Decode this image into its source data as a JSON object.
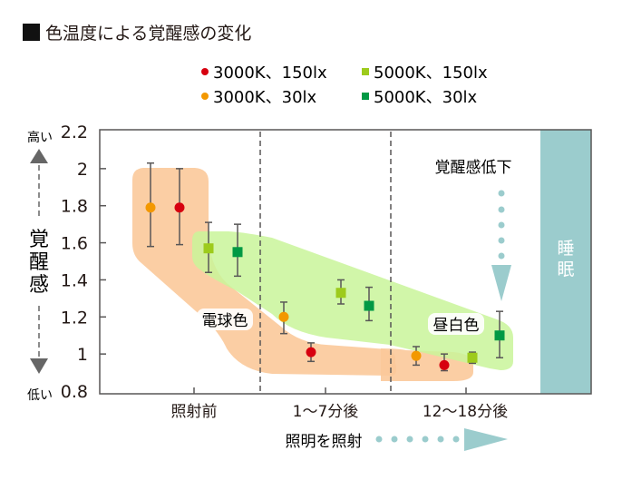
{
  "chart_data": {
    "type": "scatter",
    "title": "色温度による覚醒感の変化",
    "xlabel": "照明を照射",
    "ylabel": "覚醒感",
    "ylabel_high": "高い",
    "ylabel_low": "低い",
    "ylim": [
      0.8,
      2.2
    ],
    "yticks": [
      "2.2",
      "2",
      "1.8",
      "1.6",
      "1.4",
      "1.2",
      "1",
      "0.8"
    ],
    "ytick_values": [
      2.2,
      2.0,
      1.8,
      1.6,
      1.4,
      1.2,
      1.0,
      0.8
    ],
    "categories": [
      "照射前",
      "1〜7分後",
      "12〜18分後"
    ],
    "legend_placement": "top",
    "series": [
      {
        "name": "3000K、150lx",
        "color": "#d7000f",
        "marker": "circle",
        "values": [
          1.79,
          1.01,
          0.94
        ],
        "err_low": [
          1.59,
          0.96,
          0.91
        ],
        "err_high": [
          2.0,
          1.06,
          1.0
        ]
      },
      {
        "name": "5000K、150lx",
        "color": "#9dcb1c",
        "marker": "square",
        "values": [
          1.57,
          1.33,
          0.98
        ],
        "err_low": [
          1.44,
          1.27,
          0.95
        ],
        "err_high": [
          1.71,
          1.4,
          1.01
        ]
      },
      {
        "name": "3000K、30lx",
        "color": "#f39800",
        "marker": "circle",
        "values": [
          1.79,
          1.2,
          0.99
        ],
        "err_low": [
          1.58,
          1.11,
          0.94
        ],
        "err_high": [
          2.03,
          1.28,
          1.04
        ]
      },
      {
        "name": "5000K、30lx",
        "color": "#009944",
        "marker": "square",
        "values": [
          1.55,
          1.26,
          1.1
        ],
        "err_low": [
          1.42,
          1.18,
          0.98
        ],
        "err_high": [
          1.7,
          1.36,
          1.23
        ]
      }
    ],
    "annotations": {
      "bulb_color": "電球色",
      "daylight_color": "昼白色",
      "arousal_down": "覚醒感低下",
      "sleep": "睡眠"
    },
    "colors": {
      "bulb_band": "#fbc99a",
      "daylight_band": "#c9f59a",
      "sleep_band": "#9bcccd",
      "arrow": "#9bcccd",
      "axis": "#595757"
    }
  }
}
